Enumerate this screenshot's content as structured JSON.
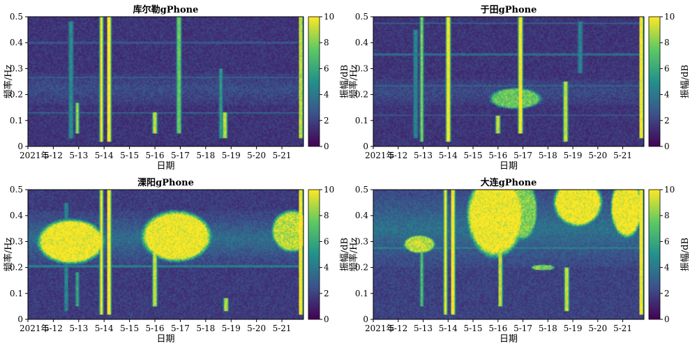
{
  "figure": {
    "panels": [
      {
        "title": "库尔勒gPhone"
      },
      {
        "title": "于田gPhone"
      },
      {
        "title": "溧阳gPhone"
      },
      {
        "title": "大连gPhone"
      }
    ]
  },
  "chart_data": [
    {
      "type": "heatmap",
      "title": "库尔勒gPhone",
      "xlabel": "日期",
      "ylabel": "频率/Hz",
      "colorbar_label": "振幅/dB",
      "colorbar_ticks": [
        "0",
        "2",
        "4",
        "6",
        "8",
        "10"
      ],
      "colorbar_range": [
        0,
        10
      ],
      "colormap": [
        "#440154",
        "#3b528b",
        "#21918c",
        "#5ec962",
        "#fde725"
      ],
      "x_ticks": [
        "2021年",
        "5-12",
        "5-13",
        "5-14",
        "5-15",
        "5-16",
        "5-17",
        "5-18",
        "5-19",
        "5-20",
        "5-21"
      ],
      "y_ticks": [
        "0",
        "0.1",
        "0.2",
        "0.3",
        "0.4",
        "0.5"
      ],
      "ylim": [
        0,
        0.5
      ],
      "xlim_days": [
        11,
        21.85
      ],
      "background_level": 1.6,
      "horizontal_lines": [
        {
          "freq": 0.13,
          "level": 3.5
        },
        {
          "freq": 0.265,
          "level": 3.2
        },
        {
          "freq": 0.4,
          "level": 2.6
        }
      ],
      "diffuse_band": {
        "freq_low": 0.16,
        "freq_high": 0.28,
        "level": 2.4
      },
      "events": [
        {
          "day": 12.7,
          "freq_low": 0.03,
          "freq_high": 0.48,
          "level": 4.8
        },
        {
          "day": 12.95,
          "freq_low": 0.05,
          "freq_high": 0.17,
          "level": 8.5
        },
        {
          "day": 13.9,
          "freq_low": 0.02,
          "freq_high": 0.5,
          "level": 10
        },
        {
          "day": 14.2,
          "freq_low": 0.02,
          "freq_high": 0.5,
          "level": 10
        },
        {
          "day": 16.0,
          "freq_low": 0.05,
          "freq_high": 0.13,
          "level": 9
        },
        {
          "day": 16.95,
          "freq_low": 0.05,
          "freq_high": 0.5,
          "level": 7.5
        },
        {
          "day": 18.6,
          "freq_low": 0.03,
          "freq_high": 0.3,
          "level": 5.5
        },
        {
          "day": 18.75,
          "freq_low": 0.03,
          "freq_high": 0.13,
          "level": 9
        },
        {
          "day": 21.75,
          "freq_low": 0.03,
          "freq_high": 0.5,
          "level": 9
        }
      ],
      "blobs": []
    },
    {
      "type": "heatmap",
      "title": "于田gPhone",
      "xlabel": "日期",
      "ylabel": "频率/Hz",
      "colorbar_label": "振幅/dB",
      "colorbar_ticks": [
        "0",
        "2",
        "4",
        "6",
        "8",
        "10"
      ],
      "colorbar_range": [
        0,
        10
      ],
      "colormap": [
        "#440154",
        "#3b528b",
        "#21918c",
        "#5ec962",
        "#fde725"
      ],
      "x_ticks": [
        "2021年",
        "5-12",
        "5-13",
        "5-14",
        "5-15",
        "5-16",
        "5-17",
        "5-18",
        "5-19",
        "5-20",
        "5-21"
      ],
      "y_ticks": [
        "0",
        "0.1",
        "0.2",
        "0.3",
        "0.4",
        "0.5"
      ],
      "ylim": [
        0,
        0.5
      ],
      "xlim_days": [
        11,
        21.85
      ],
      "background_level": 1.6,
      "horizontal_lines": [
        {
          "freq": 0.12,
          "level": 2.8
        },
        {
          "freq": 0.235,
          "level": 3.4
        },
        {
          "freq": 0.355,
          "level": 3.4
        },
        {
          "freq": 0.475,
          "level": 3.2
        }
      ],
      "diffuse_band": {
        "freq_low": 0.16,
        "freq_high": 0.26,
        "level": 2.3
      },
      "events": [
        {
          "day": 12.7,
          "freq_low": 0.03,
          "freq_high": 0.45,
          "level": 4.5
        },
        {
          "day": 12.95,
          "freq_low": 0.02,
          "freq_high": 0.5,
          "level": 8
        },
        {
          "day": 14.0,
          "freq_low": 0.02,
          "freq_high": 0.5,
          "level": 10
        },
        {
          "day": 16.0,
          "freq_low": 0.05,
          "freq_high": 0.12,
          "level": 9
        },
        {
          "day": 16.9,
          "freq_low": 0.05,
          "freq_high": 0.5,
          "level": 10
        },
        {
          "day": 18.7,
          "freq_low": 0.02,
          "freq_high": 0.25,
          "level": 9
        },
        {
          "day": 19.3,
          "freq_low": 0.28,
          "freq_high": 0.48,
          "level": 4.5
        },
        {
          "day": 21.75,
          "freq_low": 0.03,
          "freq_high": 0.5,
          "level": 10
        }
      ],
      "blobs": [
        {
          "day_center": 16.7,
          "freq_center": 0.185,
          "day_radius": 0.9,
          "freq_radius": 0.035,
          "level": 7.5
        }
      ]
    },
    {
      "type": "heatmap",
      "title": "溧阳gPhone",
      "xlabel": "日期",
      "ylabel": "频率/Hz",
      "colorbar_label": "振幅/dB",
      "colorbar_ticks": [
        "0",
        "2",
        "4",
        "6",
        "8",
        "10"
      ],
      "colorbar_range": [
        0,
        10
      ],
      "colormap": [
        "#440154",
        "#3b528b",
        "#21918c",
        "#5ec962",
        "#fde725"
      ],
      "x_ticks": [
        "2021年",
        "5-12",
        "5-13",
        "5-14",
        "5-15",
        "5-16",
        "5-17",
        "5-18",
        "5-19",
        "5-20",
        "5-21"
      ],
      "y_ticks": [
        "0",
        "0.1",
        "0.2",
        "0.3",
        "0.4",
        "0.5"
      ],
      "ylim": [
        0,
        0.5
      ],
      "xlim_days": [
        11,
        21.85
      ],
      "background_level": 1.8,
      "horizontal_lines": [
        {
          "freq": 0.205,
          "level": 4.2
        }
      ],
      "diffuse_band": {
        "freq_low": 0.2,
        "freq_high": 0.42,
        "level": 3.6
      },
      "events": [
        {
          "day": 12.5,
          "freq_low": 0.03,
          "freq_high": 0.45,
          "level": 4.5
        },
        {
          "day": 12.95,
          "freq_low": 0.05,
          "freq_high": 0.18,
          "level": 6
        },
        {
          "day": 13.9,
          "freq_low": 0.02,
          "freq_high": 0.5,
          "level": 10
        },
        {
          "day": 14.2,
          "freq_low": 0.02,
          "freq_high": 0.5,
          "level": 10
        },
        {
          "day": 16.0,
          "freq_low": 0.05,
          "freq_high": 0.3,
          "level": 9
        },
        {
          "day": 18.8,
          "freq_low": 0.03,
          "freq_high": 0.08,
          "level": 9
        },
        {
          "day": 21.75,
          "freq_low": 0.02,
          "freq_high": 0.5,
          "level": 10
        }
      ],
      "blobs": [
        {
          "day_center": 12.7,
          "freq_center": 0.3,
          "day_radius": 1.15,
          "freq_radius": 0.075,
          "level": 10
        },
        {
          "day_center": 16.85,
          "freq_center": 0.32,
          "day_radius": 1.2,
          "freq_radius": 0.085,
          "level": 10
        },
        {
          "day_center": 21.4,
          "freq_center": 0.34,
          "day_radius": 0.7,
          "freq_radius": 0.07,
          "level": 9
        }
      ]
    },
    {
      "type": "heatmap",
      "title": "大连gPhone",
      "xlabel": "日期",
      "ylabel": "频率/Hz",
      "colorbar_label": "振幅/dB",
      "colorbar_ticks": [
        "0",
        "2",
        "4",
        "6",
        "8",
        "10"
      ],
      "colorbar_range": [
        0,
        10
      ],
      "colormap": [
        "#440154",
        "#3b528b",
        "#21918c",
        "#5ec962",
        "#fde725"
      ],
      "x_ticks": [
        "2021年",
        "5-12",
        "5-13",
        "5-14",
        "5-15",
        "5-16",
        "5-17",
        "5-18",
        "5-19",
        "5-20",
        "5-21"
      ],
      "y_ticks": [
        "0",
        "0.1",
        "0.2",
        "0.3",
        "0.4",
        "0.5"
      ],
      "ylim": [
        0,
        0.5
      ],
      "xlim_days": [
        11,
        21.85
      ],
      "background_level": 2.0,
      "horizontal_lines": [
        {
          "freq": 0.275,
          "level": 4.8
        }
      ],
      "diffuse_band": {
        "freq_low": 0.2,
        "freq_high": 0.5,
        "level": 3.8
      },
      "events": [
        {
          "day": 12.95,
          "freq_low": 0.05,
          "freq_high": 0.28,
          "level": 7
        },
        {
          "day": 13.9,
          "freq_low": 0.02,
          "freq_high": 0.5,
          "level": 10
        },
        {
          "day": 14.2,
          "freq_low": 0.02,
          "freq_high": 0.5,
          "level": 10
        },
        {
          "day": 16.1,
          "freq_low": 0.05,
          "freq_high": 0.3,
          "level": 9
        },
        {
          "day": 18.75,
          "freq_low": 0.03,
          "freq_high": 0.2,
          "level": 9
        },
        {
          "day": 21.75,
          "freq_low": 0.02,
          "freq_high": 0.5,
          "level": 10
        }
      ],
      "blobs": [
        {
          "day_center": 12.85,
          "freq_center": 0.29,
          "day_radius": 0.55,
          "freq_radius": 0.03,
          "level": 9
        },
        {
          "day_center": 15.9,
          "freq_center": 0.4,
          "day_radius": 1.0,
          "freq_radius": 0.14,
          "level": 10
        },
        {
          "day_center": 17.0,
          "freq_center": 0.42,
          "day_radius": 0.5,
          "freq_radius": 0.1,
          "level": 8
        },
        {
          "day_center": 19.2,
          "freq_center": 0.45,
          "day_radius": 0.85,
          "freq_radius": 0.08,
          "level": 10
        },
        {
          "day_center": 21.15,
          "freq_center": 0.43,
          "day_radius": 0.55,
          "freq_radius": 0.1,
          "level": 10
        },
        {
          "day_center": 17.8,
          "freq_center": 0.2,
          "day_radius": 0.4,
          "freq_radius": 0.01,
          "level": 8
        }
      ]
    }
  ]
}
